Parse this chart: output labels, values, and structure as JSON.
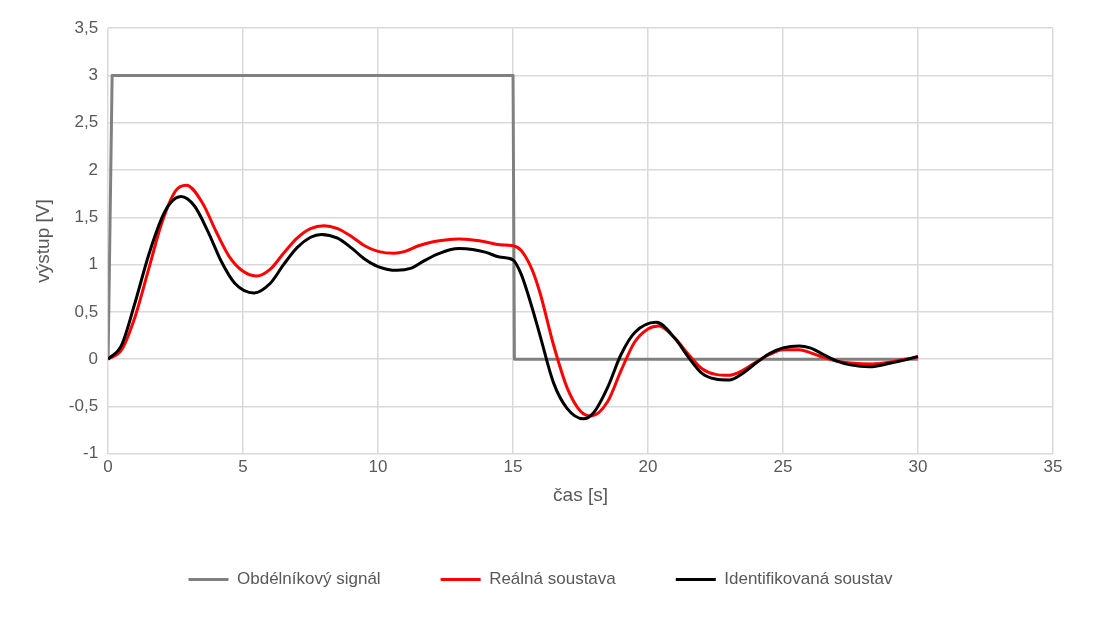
{
  "chart_data": {
    "type": "line",
    "xlabel": "čas [s]",
    "ylabel": "výstup [V]",
    "xlim": [
      0,
      35
    ],
    "xticks": [
      0,
      5,
      10,
      15,
      20,
      25,
      30,
      35
    ],
    "ylim": [
      -1,
      3.5
    ],
    "yticks": [
      {
        "value": -1,
        "label": "-1"
      },
      {
        "value": -0.5,
        "label": "-0,5"
      },
      {
        "value": 0,
        "label": "0"
      },
      {
        "value": 0.5,
        "label": "0,5"
      },
      {
        "value": 1,
        "label": "1"
      },
      {
        "value": 1.5,
        "label": "1,5"
      },
      {
        "value": 2,
        "label": "2"
      },
      {
        "value": 2.5,
        "label": "2,5"
      },
      {
        "value": 3,
        "label": "3"
      },
      {
        "value": 3.5,
        "label": "3,5"
      }
    ],
    "grid": true,
    "legend": "bottom",
    "marker": "none",
    "line_style": "solid",
    "series": [
      {
        "name": "Obdélníkový signál",
        "color": "#808080",
        "x": [
          0,
          0.15,
          15,
          15.05,
          30
        ],
        "values": [
          0,
          3,
          3,
          0,
          0
        ]
      },
      {
        "name": "Reálná soustava",
        "color": "#ff0000",
        "x": [
          0,
          0.5,
          1,
          1.5,
          2,
          2.5,
          2.9,
          3.5,
          4,
          4.5,
          5,
          5.5,
          6,
          6.5,
          7,
          7.5,
          8,
          8.5,
          9,
          9.5,
          10,
          10.6,
          11,
          11.5,
          12,
          12.5,
          13,
          13.5,
          14,
          14.5,
          15,
          15.3,
          15.7,
          16,
          16.5,
          17,
          17.5,
          17.9,
          18.5,
          19,
          19.5,
          20,
          20.4,
          21,
          21.5,
          22,
          22.5,
          23,
          23.5,
          24,
          24.5,
          25,
          25.6,
          26,
          26.5,
          27,
          27.5,
          28.3,
          29,
          29.5,
          30
        ],
        "values": [
          0,
          0.1,
          0.45,
          0.95,
          1.45,
          1.78,
          1.84,
          1.65,
          1.35,
          1.08,
          0.93,
          0.88,
          0.95,
          1.12,
          1.28,
          1.38,
          1.41,
          1.38,
          1.3,
          1.2,
          1.14,
          1.12,
          1.14,
          1.2,
          1.24,
          1.26,
          1.27,
          1.26,
          1.24,
          1.21,
          1.2,
          1.15,
          0.95,
          0.7,
          0.15,
          -0.3,
          -0.55,
          -0.6,
          -0.45,
          -0.12,
          0.18,
          0.32,
          0.35,
          0.22,
          0.05,
          -0.1,
          -0.16,
          -0.17,
          -0.12,
          -0.03,
          0.05,
          0.1,
          0.1,
          0.07,
          0.02,
          -0.02,
          -0.04,
          -0.05,
          -0.03,
          0,
          0.02
        ]
      },
      {
        "name": "Identifikovaná soustav",
        "color": "#000000",
        "x": [
          0,
          0.5,
          1,
          1.5,
          2,
          2.3,
          2.7,
          3.2,
          3.7,
          4.2,
          4.7,
          5.4,
          6,
          6.5,
          7,
          7.5,
          7.9,
          8.5,
          9,
          9.5,
          10,
          10.7,
          11.2,
          11.7,
          12.2,
          12.7,
          13,
          13.5,
          14,
          14.5,
          15,
          15.3,
          15.7,
          16,
          16.5,
          17,
          17.6,
          18,
          18.5,
          19,
          19.5,
          20.3,
          21,
          21.5,
          22,
          22.5,
          23,
          23.5,
          24,
          24.5,
          25,
          25.6,
          26,
          26.5,
          27,
          27.5,
          28.2,
          29,
          29.5,
          30
        ],
        "values": [
          0,
          0.15,
          0.6,
          1.1,
          1.5,
          1.65,
          1.72,
          1.62,
          1.35,
          1.03,
          0.8,
          0.7,
          0.8,
          1.0,
          1.18,
          1.29,
          1.32,
          1.28,
          1.18,
          1.06,
          0.98,
          0.94,
          0.96,
          1.04,
          1.11,
          1.16,
          1.17,
          1.16,
          1.13,
          1.08,
          1.05,
          0.9,
          0.55,
          0.25,
          -0.25,
          -0.52,
          -0.63,
          -0.56,
          -0.3,
          0.05,
          0.28,
          0.39,
          0.22,
          0.02,
          -0.15,
          -0.21,
          -0.22,
          -0.15,
          -0.04,
          0.06,
          0.12,
          0.14,
          0.12,
          0.05,
          -0.02,
          -0.06,
          -0.08,
          -0.04,
          -0.01,
          0.03
        ]
      }
    ]
  }
}
